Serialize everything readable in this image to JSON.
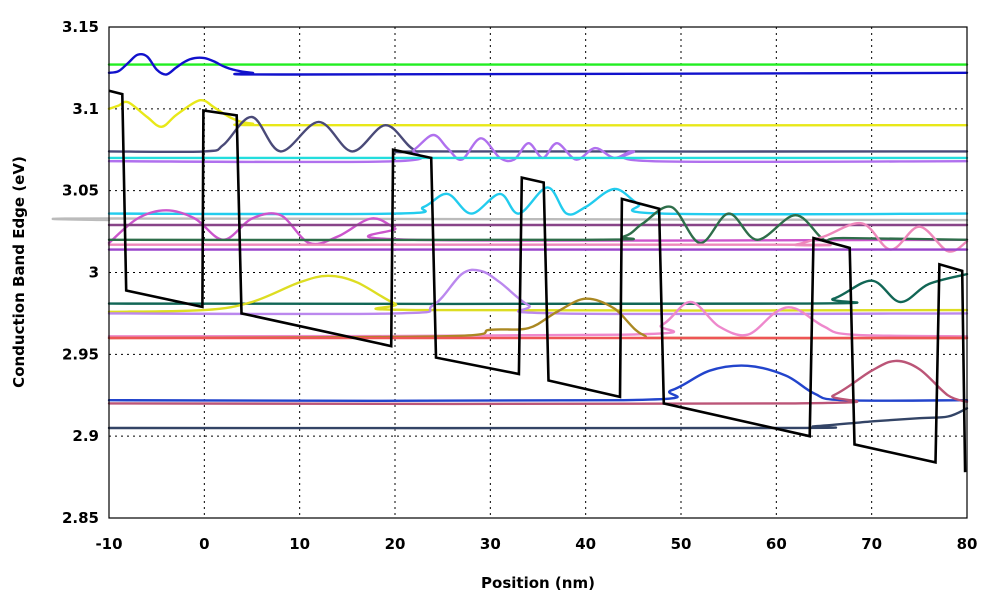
{
  "chart_data": {
    "type": "line",
    "title": "",
    "xlabel": "Position (nm)",
    "ylabel": "Conduction Band Edge  (eV)",
    "xlim": [
      -10,
      80
    ],
    "ylim": [
      2.85,
      3.15
    ],
    "xticks": [
      -10,
      0,
      10,
      20,
      30,
      40,
      50,
      60,
      70,
      80
    ],
    "yticks": [
      2.85,
      2.9,
      2.95,
      3,
      3.05,
      3.1,
      3.15
    ],
    "xtick_labels": [
      "-10",
      "0",
      "10",
      "20",
      "30",
      "40",
      "50",
      "60",
      "70",
      "80"
    ],
    "ytick_labels": [
      "2.85",
      "2.9",
      "2.95",
      "3",
      "3.05",
      "3.1",
      "3.15"
    ],
    "grid": true,
    "legend": "none",
    "band_edge": {
      "color": "#000000",
      "points": [
        [
          -10,
          3.111
        ],
        [
          -8.6,
          3.109
        ],
        [
          -8.2,
          2.989
        ],
        [
          -0.2,
          2.979
        ],
        [
          -0.1,
          3.099
        ],
        [
          3.4,
          3.096
        ],
        [
          3.9,
          2.975
        ],
        [
          19.6,
          2.955
        ],
        [
          19.8,
          3.075
        ],
        [
          23.8,
          3.07
        ],
        [
          24.3,
          2.948
        ],
        [
          33.0,
          2.938
        ],
        [
          33.3,
          3.058
        ],
        [
          35.6,
          3.055
        ],
        [
          36.1,
          2.934
        ],
        [
          43.6,
          2.924
        ],
        [
          43.8,
          3.045
        ],
        [
          47.7,
          3.039
        ],
        [
          48.2,
          2.92
        ],
        [
          63.5,
          2.9
        ],
        [
          63.9,
          3.021
        ],
        [
          67.7,
          3.015
        ],
        [
          68.2,
          2.895
        ],
        [
          76.7,
          2.884
        ],
        [
          77.1,
          3.005
        ],
        [
          79.5,
          3.001
        ],
        [
          79.8,
          2.878
        ]
      ]
    },
    "series": [
      {
        "color": "#22ee22",
        "level": 3.127,
        "points": [
          [
            -10,
            3.127
          ],
          [
            80,
            3.127
          ]
        ]
      },
      {
        "color": "#1111cc",
        "level": 3.122,
        "points": [
          [
            -10,
            3.122
          ],
          [
            -9,
            3.123
          ],
          [
            -8,
            3.128
          ],
          [
            -7,
            3.133
          ],
          [
            -6,
            3.132
          ],
          [
            -5,
            3.124
          ],
          [
            -4,
            3.121
          ],
          [
            -3,
            3.125
          ],
          [
            -2,
            3.129
          ],
          [
            -1,
            3.131
          ],
          [
            0,
            3.131
          ],
          [
            1,
            3.129
          ],
          [
            2,
            3.126
          ],
          [
            3,
            3.124
          ],
          [
            5,
            3.122
          ],
          [
            10,
            3.121
          ],
          [
            80,
            3.122
          ]
        ]
      },
      {
        "color": "#e8e818",
        "level": 3.09,
        "points": [
          [
            -10,
            3.1
          ],
          [
            -9,
            3.102
          ],
          [
            -8,
            3.104
          ],
          [
            -6,
            3.095
          ],
          [
            -4.5,
            3.089
          ],
          [
            -3,
            3.096
          ],
          [
            -1,
            3.104
          ],
          [
            0,
            3.105
          ],
          [
            1,
            3.101
          ],
          [
            3,
            3.094
          ],
          [
            5,
            3.091
          ],
          [
            10,
            3.09
          ],
          [
            80,
            3.09
          ]
        ]
      },
      {
        "color": "#4a4a78",
        "level": 3.074,
        "points": [
          [
            -10,
            3.074
          ],
          [
            0,
            3.074
          ],
          [
            2,
            3.078
          ],
          [
            5,
            3.095
          ],
          [
            8,
            3.074
          ],
          [
            12,
            3.092
          ],
          [
            15.5,
            3.074
          ],
          [
            19,
            3.09
          ],
          [
            22,
            3.075
          ],
          [
            25,
            3.074
          ],
          [
            80,
            3.074
          ]
        ]
      },
      {
        "color": "#b070ee",
        "level": 3.068,
        "points": [
          [
            -10,
            3.068
          ],
          [
            20,
            3.068
          ],
          [
            22,
            3.075
          ],
          [
            24,
            3.084
          ],
          [
            25.5,
            3.076
          ],
          [
            27,
            3.069
          ],
          [
            29,
            3.082
          ],
          [
            31,
            3.07
          ],
          [
            32.5,
            3.069
          ],
          [
            34,
            3.079
          ],
          [
            35.5,
            3.07
          ],
          [
            37,
            3.079
          ],
          [
            39,
            3.069
          ],
          [
            41,
            3.076
          ],
          [
            43,
            3.07
          ],
          [
            45,
            3.074
          ],
          [
            47,
            3.068
          ],
          [
            80,
            3.068
          ]
        ]
      },
      {
        "color": "#22dddd",
        "level": 3.07,
        "points": [
          [
            -10,
            3.07
          ],
          [
            80,
            3.07
          ]
        ]
      },
      {
        "color": "#22ccee",
        "level": 3.036,
        "points": [
          [
            -10,
            3.036
          ],
          [
            20,
            3.036
          ],
          [
            23,
            3.04
          ],
          [
            25.5,
            3.048
          ],
          [
            28,
            3.036
          ],
          [
            31,
            3.048
          ],
          [
            33,
            3.036
          ],
          [
            36,
            3.052
          ],
          [
            38,
            3.036
          ],
          [
            40,
            3.04
          ],
          [
            43,
            3.051
          ],
          [
            45.5,
            3.042
          ],
          [
            48,
            3.036
          ],
          [
            80,
            3.036
          ]
        ]
      },
      {
        "color": "#bbbbbb",
        "level": 3.032,
        "points": [
          [
            -10,
            3.032
          ],
          [
            -9,
            3.033
          ],
          [
            80,
            3.032
          ]
        ]
      },
      {
        "color": "#cc55cc",
        "level": 3.02,
        "points": [
          [
            -10,
            3.018
          ],
          [
            -7,
            3.033
          ],
          [
            -4,
            3.038
          ],
          [
            -1,
            3.033
          ],
          [
            2,
            3.02
          ],
          [
            5,
            3.033
          ],
          [
            8,
            3.035
          ],
          [
            11,
            3.018
          ],
          [
            14,
            3.022
          ],
          [
            17.5,
            3.033
          ],
          [
            20,
            3.027
          ],
          [
            22,
            3.02
          ],
          [
            80,
            3.02
          ]
        ]
      },
      {
        "color": "#884488",
        "level": 3.029,
        "points": [
          [
            -10,
            3.029
          ],
          [
            80,
            3.029
          ]
        ]
      },
      {
        "color": "#2e6e4a",
        "level": 3.02,
        "points": [
          [
            -10,
            3.02
          ],
          [
            40,
            3.02
          ],
          [
            44,
            3.022
          ],
          [
            46,
            3.03
          ],
          [
            49,
            3.04
          ],
          [
            52,
            3.018
          ],
          [
            55,
            3.036
          ],
          [
            58,
            3.02
          ],
          [
            62,
            3.035
          ],
          [
            65,
            3.02
          ],
          [
            67,
            3.021
          ],
          [
            80,
            3.02
          ]
        ]
      },
      {
        "color": "#ee88bb",
        "level": 3.017,
        "points": [
          [
            -10,
            3.017
          ],
          [
            60,
            3.017
          ],
          [
            62,
            3.017
          ],
          [
            65,
            3.022
          ],
          [
            69,
            3.03
          ],
          [
            72,
            3.014
          ],
          [
            75,
            3.028
          ],
          [
            78,
            3.013
          ],
          [
            80,
            3.019
          ]
        ]
      },
      {
        "color": "#9944cc",
        "level": 3.014,
        "points": [
          [
            -10,
            3.014
          ],
          [
            80,
            3.014
          ]
        ]
      },
      {
        "color": "#116655",
        "level": 2.981,
        "points": [
          [
            -10,
            2.981
          ],
          [
            62,
            2.981
          ],
          [
            66,
            2.984
          ],
          [
            70,
            2.995
          ],
          [
            73,
            2.982
          ],
          [
            76,
            2.993
          ],
          [
            80,
            2.999
          ]
        ]
      },
      {
        "color": "#dddd22",
        "level": 2.977,
        "points": [
          [
            -10,
            2.976
          ],
          [
            0,
            2.977
          ],
          [
            5,
            2.982
          ],
          [
            10,
            2.994
          ],
          [
            13,
            2.998
          ],
          [
            16,
            2.994
          ],
          [
            20,
            2.981
          ],
          [
            23,
            2.977
          ],
          [
            80,
            2.977
          ]
        ]
      },
      {
        "color": "#bb88ee",
        "level": 2.975,
        "points": [
          [
            -10,
            2.975
          ],
          [
            20,
            2.975
          ],
          [
            24,
            2.98
          ],
          [
            27,
            2.999
          ],
          [
            29,
            3.001
          ],
          [
            31,
            2.994
          ],
          [
            34,
            2.98
          ],
          [
            37,
            2.975
          ],
          [
            80,
            2.975
          ]
        ]
      },
      {
        "color": "#ee88cc",
        "level": 2.961,
        "points": [
          [
            -10,
            2.961
          ],
          [
            44,
            2.962
          ],
          [
            48,
            2.968
          ],
          [
            51,
            2.982
          ],
          [
            54,
            2.967
          ],
          [
            57,
            2.962
          ],
          [
            60,
            2.976
          ],
          [
            62,
            2.978
          ],
          [
            65,
            2.967
          ],
          [
            68,
            2.962
          ],
          [
            80,
            2.961
          ]
        ]
      },
      {
        "color": "#aa8822",
        "level": 2.96,
        "points": [
          [
            -10,
            2.96
          ],
          [
            25,
            2.961
          ],
          [
            30,
            2.965
          ],
          [
            34,
            2.966
          ],
          [
            37,
            2.976
          ],
          [
            40,
            2.984
          ],
          [
            43,
            2.978
          ],
          [
            46,
            2.962
          ],
          [
            50,
            2.96
          ],
          [
            80,
            2.96
          ]
        ]
      },
      {
        "color": "#ee5555",
        "level": 2.96,
        "points": [
          [
            -10,
            2.96
          ],
          [
            80,
            2.96
          ]
        ]
      },
      {
        "color": "#2244cc",
        "level": 2.922,
        "points": [
          [
            -10,
            2.922
          ],
          [
            44,
            2.922
          ],
          [
            49,
            2.928
          ],
          [
            53,
            2.94
          ],
          [
            57,
            2.943
          ],
          [
            61,
            2.937
          ],
          [
            64,
            2.926
          ],
          [
            67,
            2.922
          ],
          [
            80,
            2.922
          ]
        ]
      },
      {
        "color": "#bb5577",
        "level": 2.92,
        "points": [
          [
            -10,
            2.92
          ],
          [
            62,
            2.92
          ],
          [
            66,
            2.925
          ],
          [
            70,
            2.94
          ],
          [
            72.5,
            2.946
          ],
          [
            75,
            2.941
          ],
          [
            78,
            2.925
          ],
          [
            80,
            2.921
          ]
        ]
      },
      {
        "color": "#334466",
        "level": 2.905,
        "points": [
          [
            -10,
            2.905
          ],
          [
            60,
            2.905
          ],
          [
            64,
            2.906
          ],
          [
            70,
            2.909
          ],
          [
            75,
            2.911
          ],
          [
            78,
            2.912
          ],
          [
            80,
            2.917
          ]
        ]
      }
    ]
  }
}
